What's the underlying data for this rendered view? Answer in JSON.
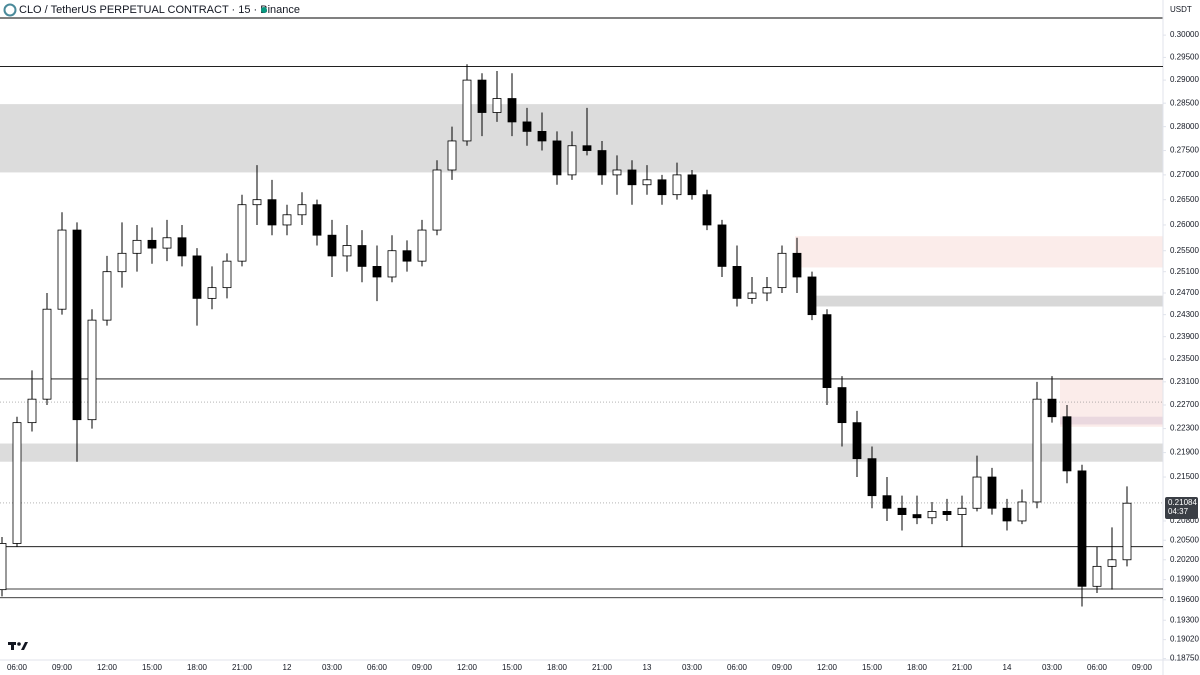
{
  "chart_data": {
    "type": "candlestick",
    "title": "CLO / TetherUS PERPETUAL CONTRACT · 15 · Binance",
    "y_axis_label": "USDT",
    "log_scale": true,
    "grid": false,
    "up_color": "#ffffff",
    "down_color": "#000000",
    "wick_color": "#000000",
    "categories": [
      null,
      "06:00",
      null,
      null,
      "09:00",
      null,
      null,
      "12:00",
      null,
      null,
      "15:00",
      null,
      null,
      "18:00",
      null,
      null,
      "21:00",
      null,
      null,
      "12",
      null,
      null,
      "03:00",
      null,
      null,
      "06:00",
      null,
      null,
      "09:00",
      null,
      null,
      "12:00",
      null,
      null,
      "15:00",
      null,
      null,
      "18:00",
      null,
      null,
      "21:00",
      null,
      null,
      "13",
      null,
      null,
      "03:00",
      null,
      null,
      "06:00",
      null,
      null,
      "09:00",
      null,
      null,
      "12:00",
      null,
      null,
      "15:00",
      null,
      null,
      "18:00",
      null,
      null,
      "21:00",
      null,
      null,
      "14",
      null,
      null,
      "03:00",
      null,
      null,
      "06:00",
      null,
      null,
      "09:00"
    ],
    "open": [
      0.1975,
      0.2045,
      0.224,
      0.228,
      0.244,
      0.259,
      0.2245,
      0.242,
      0.251,
      0.2545,
      0.257,
      0.2555,
      0.2575,
      0.254,
      0.246,
      0.248,
      0.253,
      0.264,
      0.265,
      0.26,
      0.262,
      0.264,
      0.258,
      0.254,
      0.256,
      0.252,
      0.25,
      0.255,
      0.253,
      0.259,
      0.271,
      0.277,
      0.29,
      0.283,
      0.286,
      0.281,
      0.279,
      0.277,
      0.27,
      0.276,
      0.275,
      0.27,
      0.271,
      0.268,
      0.269,
      0.266,
      0.27,
      0.266,
      0.26,
      0.252,
      0.246,
      0.247,
      0.248,
      0.2545,
      0.25,
      0.243,
      0.23,
      0.224,
      0.218,
      0.212,
      0.21,
      0.209,
      0.2085,
      0.2095,
      0.209,
      0.21,
      0.215,
      0.21,
      0.208,
      0.211,
      0.228,
      0.225,
      0.216,
      0.198,
      0.201,
      0.202,
      null
    ],
    "high": [
      0.2055,
      0.225,
      0.233,
      0.247,
      0.2625,
      0.2605,
      0.244,
      0.254,
      0.2605,
      0.26,
      0.2595,
      0.261,
      0.26,
      0.2555,
      0.252,
      0.2545,
      0.266,
      0.272,
      0.269,
      0.264,
      0.2665,
      0.265,
      0.261,
      0.26,
      0.259,
      0.256,
      0.258,
      0.257,
      0.261,
      0.273,
      0.28,
      0.2935,
      0.2915,
      0.292,
      0.2915,
      0.284,
      0.283,
      0.279,
      0.279,
      0.284,
      0.277,
      0.274,
      0.273,
      0.272,
      0.27,
      0.2725,
      0.271,
      0.267,
      0.261,
      0.256,
      0.25,
      0.25,
      0.256,
      0.2575,
      0.251,
      0.244,
      0.232,
      0.226,
      0.22,
      0.215,
      0.212,
      0.212,
      0.211,
      0.2115,
      0.212,
      0.2185,
      0.2165,
      0.2115,
      0.213,
      0.231,
      0.232,
      0.227,
      0.217,
      0.204,
      0.207,
      0.2135,
      null
    ],
    "low": [
      0.1965,
      0.204,
      0.2225,
      0.227,
      0.243,
      0.2175,
      0.223,
      0.241,
      0.248,
      0.251,
      0.2525,
      0.253,
      0.252,
      0.241,
      0.244,
      0.246,
      0.252,
      0.26,
      0.258,
      0.258,
      0.26,
      0.256,
      0.25,
      0.251,
      0.249,
      0.2455,
      0.249,
      0.251,
      0.252,
      0.258,
      0.269,
      0.276,
      0.278,
      0.281,
      0.278,
      0.276,
      0.275,
      0.268,
      0.269,
      0.274,
      0.268,
      0.266,
      0.264,
      0.266,
      0.264,
      0.265,
      0.265,
      0.259,
      0.25,
      0.2445,
      0.245,
      0.2455,
      0.247,
      0.247,
      0.242,
      0.227,
      0.22,
      0.215,
      0.21,
      0.208,
      0.2065,
      0.2075,
      0.2075,
      0.208,
      0.204,
      0.2095,
      0.209,
      0.2065,
      0.2075,
      0.21,
      0.224,
      0.214,
      0.195,
      0.197,
      0.1975,
      0.201,
      null
    ],
    "close": [
      0.2045,
      0.224,
      0.228,
      0.244,
      0.259,
      0.2245,
      0.242,
      0.251,
      0.2545,
      0.257,
      0.2555,
      0.2575,
      0.254,
      0.246,
      0.248,
      0.253,
      0.264,
      0.265,
      0.26,
      0.262,
      0.264,
      0.258,
      0.254,
      0.256,
      0.252,
      0.25,
      0.255,
      0.253,
      0.259,
      0.271,
      0.277,
      0.29,
      0.283,
      0.286,
      0.281,
      0.279,
      0.277,
      0.27,
      0.276,
      0.275,
      0.27,
      0.271,
      0.268,
      0.269,
      0.266,
      0.27,
      0.266,
      0.26,
      0.252,
      0.246,
      0.247,
      0.248,
      0.2545,
      0.25,
      0.243,
      0.23,
      0.224,
      0.218,
      0.212,
      0.21,
      0.209,
      0.2085,
      0.2095,
      0.209,
      0.21,
      0.215,
      0.21,
      0.208,
      0.211,
      0.228,
      0.225,
      0.216,
      0.198,
      0.201,
      0.202,
      0.2108,
      null
    ],
    "ylim": [
      0.1873,
      0.3039
    ],
    "yticks": [
      {
        "value": 0.3,
        "label": "0.30000"
      },
      {
        "value": 0.295,
        "label": "0.29500"
      },
      {
        "value": 0.29,
        "label": "0.29000"
      },
      {
        "value": 0.285,
        "label": "0.28500"
      },
      {
        "value": 0.28,
        "label": "0.28000"
      },
      {
        "value": 0.275,
        "label": "0.27500"
      },
      {
        "value": 0.27,
        "label": "0.27000"
      },
      {
        "value": 0.265,
        "label": "0.26500"
      },
      {
        "value": 0.26,
        "label": "0.26000"
      },
      {
        "value": 0.255,
        "label": "0.25500"
      },
      {
        "value": 0.251,
        "label": "0.25100"
      },
      {
        "value": 0.247,
        "label": "0.24700"
      },
      {
        "value": 0.243,
        "label": "0.24300"
      },
      {
        "value": 0.239,
        "label": "0.23900"
      },
      {
        "value": 0.235,
        "label": "0.23500"
      },
      {
        "value": 0.231,
        "label": "0.23100"
      },
      {
        "value": 0.227,
        "label": "0.22700"
      },
      {
        "value": 0.223,
        "label": "0.22300"
      },
      {
        "value": 0.219,
        "label": "0.21900"
      },
      {
        "value": 0.215,
        "label": "0.21500"
      },
      {
        "value": 0.208,
        "label": "0.20800"
      },
      {
        "value": 0.205,
        "label": "0.20500"
      },
      {
        "value": 0.202,
        "label": "0.20200"
      },
      {
        "value": 0.199,
        "label": "0.19900"
      },
      {
        "value": 0.196,
        "label": "0.19600"
      },
      {
        "value": 0.193,
        "label": "0.19300"
      },
      {
        "value": 0.1902,
        "label": "0.19020"
      },
      {
        "value": 0.1875,
        "label": "0.18750"
      }
    ],
    "levels": [
      {
        "value": 0.293,
        "style": "solid"
      },
      {
        "value": 0.2315,
        "style": "solid"
      },
      {
        "value": 0.204,
        "style": "solid"
      },
      {
        "value": 0.1976,
        "style": "solid"
      },
      {
        "value": 0.1963,
        "style": "solid"
      },
      {
        "value": 0.2275,
        "style": "dotted"
      }
    ],
    "zones": [
      {
        "low": 0.2705,
        "high": 0.2848,
        "color": "#dcdcdc"
      },
      {
        "low": 0.2175,
        "high": 0.2205,
        "color": "#dcdcdc"
      },
      {
        "low": 0.2518,
        "high": 0.2578,
        "color": "#fbecea"
      },
      {
        "low": 0.2445,
        "high": 0.2465,
        "color": "#d8d8d8"
      },
      {
        "low": 0.2233,
        "high": 0.2315,
        "color": "#fbecea"
      },
      {
        "low": 0.2237,
        "high": 0.225,
        "color": "#ead8df"
      }
    ],
    "last_price": {
      "value": 0.21084,
      "label": "0.21084"
    },
    "countdown": "04:37"
  }
}
